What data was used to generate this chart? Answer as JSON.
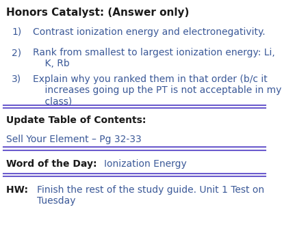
{
  "bg_color": "#ffffff",
  "title_text": "Honors Catalyst: (Answer only)",
  "title_color": "#1a1a1a",
  "items_color": "#3b5998",
  "items": [
    "Contrast ionization energy and electronegativity.",
    "Rank from smallest to largest ionization energy: Li,\n    K, Rb",
    "Explain why you ranked them in that order (b/c it\n    increases going up the PT is not acceptable in my\n    class)"
  ],
  "separator_color": "#6a5acd",
  "section2_label": "Update Table of Contents:",
  "section2_label_color": "#1a1a1a",
  "section2_body": "Sell Your Element – Pg 32-33",
  "section2_body_color": "#3b5998",
  "section3_label": "Word of the Day: ",
  "section3_label_color": "#1a1a1a",
  "section3_body": "Ionization Energy",
  "section3_body_color": "#3b5998",
  "section4_label": "HW: ",
  "section4_label_color": "#1a1a1a",
  "section4_body": "Finish the rest of the study guide. Unit 1 Test on\nTuesday",
  "section4_body_color": "#3b5998",
  "font_size_title": 11,
  "font_size_body": 10,
  "font_size_section": 10
}
